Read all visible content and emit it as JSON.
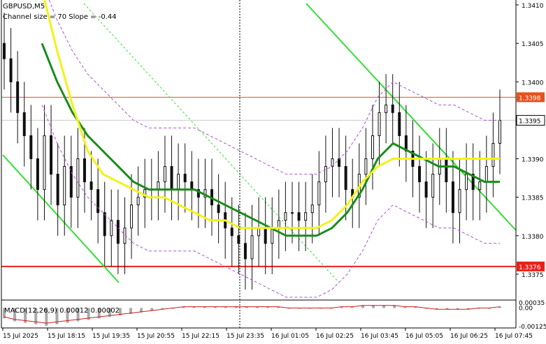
{
  "header": {
    "symbol_label": "GBPUSD,M5",
    "channel_label": "Channel size = 70 Slope = -0.44",
    "macd_label": "MACD(12,26,9) 0.00012 0.00002"
  },
  "chart_data": [
    {
      "type": "line",
      "title": "GBPUSD,M5",
      "subtitle": "Channel size = 70 Slope = -0.44",
      "x_tick_labels": [
        "15 Jul 2025",
        "15 Jul 18:15",
        "15 Jul 19:35",
        "15 Jul 20:55",
        "15 Jul 22:15",
        "15 Jul 23:35",
        "16 Jul 01:05",
        "16 Jul 02:25",
        "16 Jul 03:45",
        "16 Jul 05:05",
        "16 Jul 06:25",
        "16 Jul 07:45"
      ],
      "y_tick_labels": [
        "1.3410",
        "1.3405",
        "1.3400",
        "1.3395",
        "1.3390",
        "1.3385",
        "1.3380",
        "1.3375"
      ],
      "ylim": [
        1.3372,
        1.3411
      ],
      "levels": [
        {
          "value": 1.3398,
          "label": "1.3398",
          "color": "#e8501e"
        },
        {
          "value": 1.3376,
          "label": "1.3376",
          "color": "#e8201a"
        }
      ],
      "current_price": {
        "value": 1.3395,
        "label": "1.3395"
      },
      "close_prices": [
        1.3403,
        1.34,
        1.3396,
        1.3393,
        1.339,
        1.3386,
        1.3393,
        1.3388,
        1.3384,
        1.3389,
        1.3385,
        1.339,
        1.3387,
        1.3386,
        1.3383,
        1.338,
        1.3382,
        1.3379,
        1.3381,
        1.3384,
        1.3385,
        1.3386,
        1.3386,
        1.3387,
        1.3389,
        1.3386,
        1.3388,
        1.3387,
        1.3386,
        1.3385,
        1.3386,
        1.3384,
        1.3383,
        1.3381,
        1.338,
        1.3379,
        1.3377,
        1.338,
        1.3381,
        1.3379,
        1.3381,
        1.3382,
        1.3383,
        1.3383,
        1.3382,
        1.3383,
        1.3384,
        1.3387,
        1.3389,
        1.339,
        1.3389,
        1.3386,
        1.3385,
        1.3388,
        1.339,
        1.3393,
        1.3396,
        1.3397,
        1.3396,
        1.3393,
        1.3391,
        1.3389,
        1.3387,
        1.3385,
        1.3388,
        1.339,
        1.3387,
        1.3383,
        1.3386,
        1.3388,
        1.3386,
        1.3387,
        1.3389,
        1.3392,
        1.3395
      ],
      "series": [
        {
          "name": "",
          "color": "#1a8c1a",
          "values": [
            1.3405,
            1.34,
            1.3396,
            1.3393,
            1.3391,
            1.3389,
            1.3387,
            1.3386,
            1.3386,
            1.3386,
            1.3386,
            1.3385,
            1.3384,
            1.3383,
            1.3382,
            1.3381,
            1.338,
            1.338,
            1.338,
            1.3381,
            1.3383,
            1.3386,
            1.339,
            1.3392,
            1.3391,
            1.339,
            1.3389,
            1.3389,
            1.3388,
            1.3387,
            1.3387
          ]
        },
        {
          "name": "",
          "color": "#f2f21a",
          "values": [
            1.3412,
            1.3404,
            1.3397,
            1.3391,
            1.3388,
            1.3387,
            1.3386,
            1.3385,
            1.3385,
            1.3384,
            1.3383,
            1.3382,
            1.3382,
            1.3381,
            1.3381,
            1.3381,
            1.3381,
            1.3381,
            1.3381,
            1.3382,
            1.3384,
            1.3387,
            1.3389,
            1.339,
            1.339,
            1.339,
            1.339,
            1.339,
            1.339,
            1.339,
            1.339
          ]
        }
      ],
      "grid": false
    },
    {
      "type": "bar",
      "title": "MACD(12,26,9) 0.00012 0.00002",
      "y_tick_labels": [
        "0.00035",
        "0.00",
        "-0.00125"
      ],
      "ylim": [
        -0.00125,
        0.00035
      ],
      "macd_values": [
        -0.0007,
        -0.0009,
        -0.001,
        -0.0011,
        -0.0012,
        -0.0011,
        -0.001,
        -0.0009,
        -0.0008,
        -0.0007,
        -0.0006,
        -0.0005,
        -0.0004,
        -0.0003,
        -0.0002,
        -0.0001,
        0.0,
        0.0001,
        0.0001,
        0.0001,
        0.0001,
        0.0001,
        0.0001,
        0.0001,
        0.0001,
        0.0001,
        0.0001,
        0.0,
        0.0,
        0.0,
        0.0,
        0.0,
        0.0001,
        0.0001,
        0.0002,
        0.0002,
        0.0002,
        0.0002,
        0.0001,
        0.0001,
        0.0,
        -0.0001,
        -0.0001,
        -0.0001,
        -0.0001,
        0.0,
        0.0,
        0.0001
      ]
    }
  ],
  "colors": {
    "background": "#ffffff",
    "candles": "#111111",
    "down_channel": "#33dd33",
    "envelope": "#b050d0",
    "macd_hist": "#aaaaaa",
    "macd_signal": "#cc1a1a"
  }
}
